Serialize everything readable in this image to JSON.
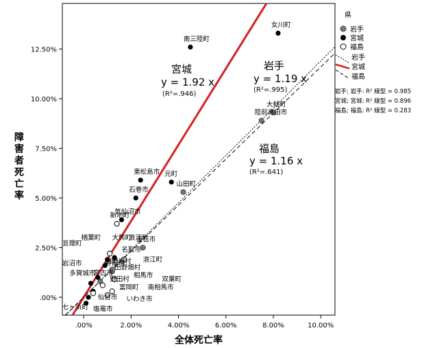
{
  "chart_data": {
    "type": "scatter",
    "xlabel": "全体死亡率",
    "ylabel": "障害者死亡率",
    "xlim": [
      -0.9,
      10.6
    ],
    "ylim": [
      -0.9,
      14.8
    ],
    "x_ticks": [
      ".00%",
      "2.00%",
      "4.00%",
      "6.00%",
      "8.00%",
      "10.00%"
    ],
    "y_ticks": [
      ".00%",
      "2.50%",
      "5.00%",
      "7.50%",
      "10.00%",
      "12.50%"
    ],
    "grid": false,
    "legend": {
      "title": "県",
      "placement": "right",
      "marker_entries": [
        "岩手",
        "宮城",
        "福島"
      ],
      "line_entries": [
        "岩手",
        "宮城",
        "福島"
      ],
      "r2_entries": [
        "岩手; 岩手: R² 線型 = 0.985",
        "宮城; 宮城: R² 線型 = 0.896",
        "福島; 福島: R² 線型 = 0.283"
      ]
    },
    "series": [
      {
        "name": "岩手",
        "color": "#777777",
        "marker": "filled-gray",
        "points": [
          {
            "label": "大槌町",
            "x": 8.0,
            "y": 9.3
          },
          {
            "label": "陸前高田市",
            "x": 7.5,
            "y": 8.9
          },
          {
            "label": "山田町",
            "x": 4.2,
            "y": 5.3
          },
          {
            "label": "釜石市",
            "x": 2.5,
            "y": 2.5
          },
          {
            "label": "野田村",
            "x": 1.2,
            "y": 1.3
          },
          {
            "label": "田野畑村",
            "x": 1.2,
            "y": 1.4
          },
          {
            "label": "宮古市",
            "x": 0.7,
            "y": 0.8
          }
        ]
      },
      {
        "name": "宮城",
        "color": "#000000",
        "marker": "filled-black",
        "points": [
          {
            "label": "女川町",
            "x": 8.2,
            "y": 13.3
          },
          {
            "label": "南三陸町",
            "x": 4.5,
            "y": 12.6
          },
          {
            "label": "東松島市",
            "x": 2.4,
            "y": 5.9
          },
          {
            "label": "元町",
            "x": 3.7,
            "y": 5.8
          },
          {
            "label": "石巻市",
            "x": 2.2,
            "y": 5.0
          },
          {
            "label": "気仙沼市",
            "x": 1.6,
            "y": 3.9
          },
          {
            "label": "",
            "x": 1.3,
            "y": 2.0
          },
          {
            "label": "",
            "x": 1.0,
            "y": 1.9
          },
          {
            "label": "",
            "x": 0.9,
            "y": 1.6
          },
          {
            "label": "",
            "x": 0.6,
            "y": 1.0
          },
          {
            "label": "",
            "x": 0.3,
            "y": 0.7
          },
          {
            "label": "",
            "x": 0.4,
            "y": 0.3
          },
          {
            "label": "",
            "x": 0.2,
            "y": 0.0
          },
          {
            "label": "",
            "x": 0.1,
            "y": -0.3
          }
        ]
      },
      {
        "name": "福島",
        "color": "#000000",
        "marker": "open",
        "points": [
          {
            "label": "新地町",
            "x": 1.4,
            "y": 3.7
          },
          {
            "label": "",
            "x": 1.1,
            "y": 2.2
          },
          {
            "label": "",
            "x": 1.7,
            "y": 1.9
          },
          {
            "label": "",
            "x": 1.3,
            "y": 0.9
          },
          {
            "label": "",
            "x": 1.2,
            "y": 0.3
          },
          {
            "label": "",
            "x": 0.8,
            "y": 0.6
          },
          {
            "label": "",
            "x": 1.0,
            "y": 0.1
          },
          {
            "label": "",
            "x": 0.4,
            "y": 0.2
          }
        ]
      }
    ],
    "extra_labels": [
      {
        "text": "楢葉町",
        "x": -0.1,
        "y": 2.9
      },
      {
        "text": "大熊町",
        "x": 1.2,
        "y": 2.9
      },
      {
        "text": "浪江町",
        "x": 1.9,
        "y": 2.9
      },
      {
        "text": "亘理町",
        "x": -0.9,
        "y": 2.6
      },
      {
        "text": "名取市",
        "x": 1.6,
        "y": 2.3
      },
      {
        "text": "浪江町",
        "x": 2.5,
        "y": 1.8
      },
      {
        "text": "岩沼市",
        "x": -0.9,
        "y": 1.6
      },
      {
        "text": "田野畑村",
        "x": 1.3,
        "y": 1.4
      },
      {
        "text": "多賀城市",
        "x": -0.6,
        "y": 1.1
      },
      {
        "text": "相馬市",
        "x": 2.1,
        "y": 1.0
      },
      {
        "text": "双葉町",
        "x": 3.3,
        "y": 0.8
      },
      {
        "text": "野田村",
        "x": 1.1,
        "y": 0.8
      },
      {
        "text": "富岡町",
        "x": 1.5,
        "y": 0.4
      },
      {
        "text": "南相馬市",
        "x": 2.7,
        "y": 0.4
      },
      {
        "text": "仙台市",
        "x": 0.6,
        "y": -0.1
      },
      {
        "text": "いわき市",
        "x": 1.8,
        "y": -0.2
      },
      {
        "text": "七ヶ浜町",
        "x": -0.9,
        "y": -0.6
      },
      {
        "text": "塩竈市",
        "x": 0.4,
        "y": -0.7
      }
    ],
    "fit_lines": [
      {
        "series": "宮城",
        "slope": 1.92,
        "equation": "y = 1.92 x",
        "r2_text": "(R²=.946)",
        "style": "solid",
        "color": "#d62020"
      },
      {
        "series": "岩手",
        "slope": 1.19,
        "equation": "y = 1.19 x",
        "r2_text": "(R²=.995)",
        "style": "dotted",
        "color": "#000000"
      },
      {
        "series": "福島",
        "slope": 1.16,
        "equation": "y = 1.16 x",
        "r2_text": "(R²=.641)",
        "style": "dashed",
        "color": "#000000"
      }
    ]
  }
}
